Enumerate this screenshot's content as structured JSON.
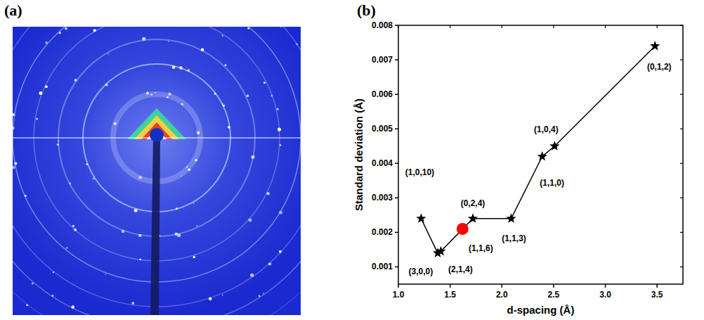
{
  "panel_labels": [
    "(a)",
    "(b)"
  ],
  "chart_data": {
    "type": "line",
    "x_label": "d-spacing (Å)",
    "y_label": "Standard deviation (Å)",
    "xlim": [
      1,
      3.75
    ],
    "ylim": [
      0.0005,
      0.008
    ],
    "xticks": [
      {
        "value": 1,
        "label": "1.0"
      },
      1.5,
      {
        "value": 2,
        "label": "2.0"
      },
      2.5,
      {
        "value": 3,
        "label": "3.0"
      },
      3.5
    ],
    "yticks": [
      0.001,
      0.002,
      0.003,
      0.004,
      0.005,
      0.006,
      0.007,
      0.008
    ],
    "grid": false,
    "series": [
      {
        "type": "line",
        "color": "#000000",
        "marker": "star",
        "line_style": "solid",
        "x": [
          1.22,
          1.38,
          1.41,
          1.72,
          2.09,
          2.39,
          2.51,
          3.48
        ],
        "values": [
          0.0024,
          0.0014,
          0.00145,
          0.0024,
          0.0024,
          0.0042,
          0.0045,
          0.0074
        ],
        "labels": [
          "(1,0,10)",
          "(3,0,0)",
          "(2,1,4)",
          "(0,2,4)",
          "(1,1,3)",
          "(1,1,0)",
          "(1,0,4)",
          "(0,1,2)"
        ]
      },
      {
        "type": "scatter",
        "color": "#ff0000",
        "marker": "circle",
        "x": [
          1.62
        ],
        "values": [
          0.0021
        ],
        "labels": [
          "(1,1,6)"
        ]
      }
    ]
  }
}
